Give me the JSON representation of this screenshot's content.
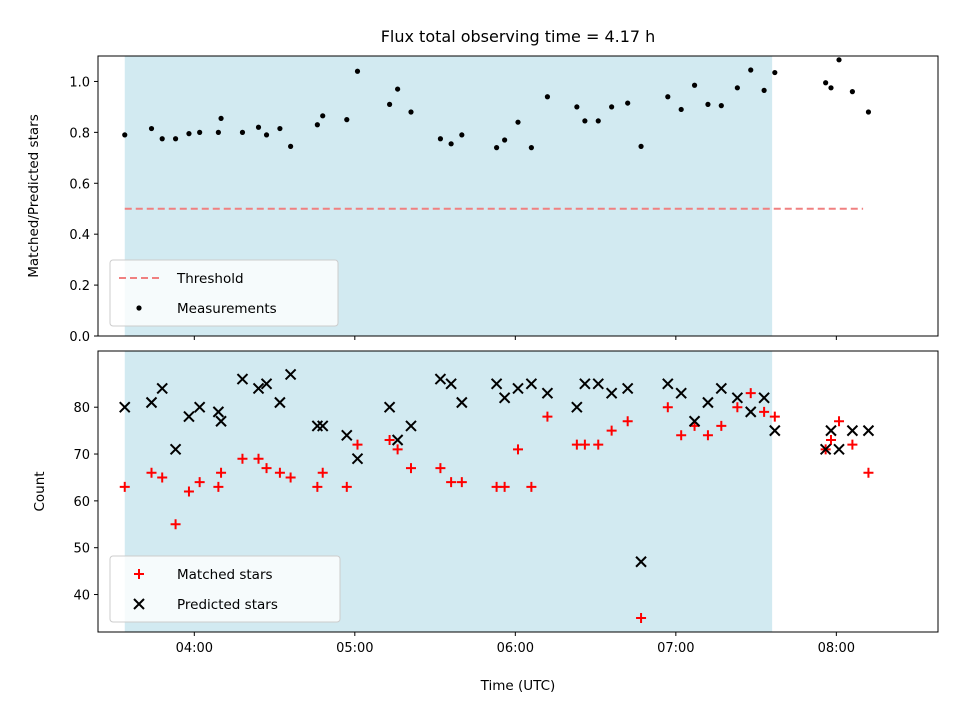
{
  "title": "Flux total observing time = 4.17 h",
  "xlabel": "Time (UTC)",
  "x_ticks": [
    "04:00",
    "05:00",
    "06:00",
    "07:00",
    "08:00"
  ],
  "colors": {
    "threshold": "#f08080",
    "span": "#add8e6",
    "measurements": "#000000",
    "matched": "#ff0000",
    "predicted": "#000000"
  },
  "chart_data": [
    {
      "type": "scatter",
      "ylabel": "Matched/Predicted stars",
      "xlim": [
        "03:24",
        "08:38"
      ],
      "ylim": [
        0,
        1.1
      ],
      "y_ticks": [
        "0.0",
        "0.2",
        "0.4",
        "0.6",
        "0.8",
        "1.0"
      ],
      "shaded_span": [
        "03:34",
        "07:36"
      ],
      "threshold": {
        "name": "Threshold",
        "y": 0.5,
        "x": [
          "03:34",
          "08:10"
        ]
      },
      "series": [
        {
          "name": "Measurements",
          "x": [
            "03:34",
            "03:44",
            "03:48",
            "03:53",
            "03:58",
            "04:02",
            "04:09",
            "04:10",
            "04:18",
            "04:24",
            "04:27",
            "04:32",
            "04:36",
            "04:46",
            "04:48",
            "04:57",
            "05:01",
            "05:13",
            "05:16",
            "05:21",
            "05:32",
            "05:36",
            "05:40",
            "05:53",
            "05:56",
            "06:01",
            "06:06",
            "06:12",
            "06:23",
            "06:26",
            "06:31",
            "06:36",
            "06:42",
            "06:47",
            "06:57",
            "07:02",
            "07:07",
            "07:12",
            "07:17",
            "07:23",
            "07:28",
            "07:33",
            "07:37",
            "07:56",
            "07:58",
            "08:01",
            "08:06",
            "08:12"
          ],
          "y": [
            0.79,
            0.815,
            0.775,
            0.775,
            0.795,
            0.8,
            0.8,
            0.855,
            0.8,
            0.82,
            0.79,
            0.815,
            0.745,
            0.83,
            0.865,
            0.85,
            1.04,
            0.91,
            0.97,
            0.88,
            0.775,
            0.755,
            0.79,
            0.74,
            0.77,
            0.84,
            0.74,
            0.94,
            0.9,
            0.845,
            0.845,
            0.9,
            0.915,
            0.745,
            0.94,
            0.89,
            0.985,
            0.91,
            0.905,
            0.975,
            1.045,
            0.965,
            1.035,
            0.995,
            0.975,
            1.085,
            0.96,
            0.88
          ]
        }
      ],
      "legend": {
        "position": "lower left",
        "entries": [
          "Threshold",
          "Measurements"
        ]
      }
    },
    {
      "type": "scatter",
      "ylabel": "Count",
      "xlim": [
        "03:24",
        "08:38"
      ],
      "ylim": [
        32,
        92
      ],
      "y_ticks": [
        "40",
        "50",
        "60",
        "70",
        "80"
      ],
      "shaded_span": [
        "03:34",
        "07:36"
      ],
      "series": [
        {
          "name": "Matched stars",
          "x": [
            "03:34",
            "03:44",
            "03:48",
            "03:53",
            "03:58",
            "04:02",
            "04:09",
            "04:10",
            "04:18",
            "04:24",
            "04:27",
            "04:32",
            "04:36",
            "04:46",
            "04:48",
            "04:57",
            "05:01",
            "05:13",
            "05:16",
            "05:21",
            "05:32",
            "05:36",
            "05:40",
            "05:53",
            "05:56",
            "06:01",
            "06:06",
            "06:12",
            "06:23",
            "06:26",
            "06:31",
            "06:36",
            "06:42",
            "06:47",
            "06:57",
            "07:02",
            "07:07",
            "07:12",
            "07:17",
            "07:23",
            "07:28",
            "07:33",
            "07:37",
            "07:56",
            "07:58",
            "08:01",
            "08:06",
            "08:12"
          ],
          "y": [
            63,
            66,
            65,
            55,
            62,
            64,
            63,
            66,
            69,
            69,
            67,
            66,
            65,
            63,
            66,
            63,
            72,
            73,
            71,
            67,
            67,
            64,
            64,
            63,
            63,
            71,
            63,
            78,
            72,
            72,
            72,
            75,
            77,
            35,
            80,
            74,
            76,
            74,
            76,
            80,
            83,
            79,
            78,
            71,
            73,
            77,
            72,
            66
          ]
        },
        {
          "name": "Predicted stars",
          "x": [
            "03:34",
            "03:44",
            "03:48",
            "03:53",
            "03:58",
            "04:02",
            "04:09",
            "04:10",
            "04:18",
            "04:24",
            "04:27",
            "04:32",
            "04:36",
            "04:46",
            "04:48",
            "04:57",
            "05:01",
            "05:13",
            "05:16",
            "05:21",
            "05:32",
            "05:36",
            "05:40",
            "05:53",
            "05:56",
            "06:01",
            "06:06",
            "06:12",
            "06:23",
            "06:26",
            "06:31",
            "06:36",
            "06:42",
            "06:47",
            "06:57",
            "07:02",
            "07:07",
            "07:12",
            "07:17",
            "07:23",
            "07:28",
            "07:33",
            "07:37",
            "07:56",
            "07:58",
            "08:01",
            "08:06",
            "08:12"
          ],
          "y": [
            80,
            81,
            84,
            71,
            78,
            80,
            79,
            77,
            86,
            84,
            85,
            81,
            87,
            76,
            76,
            74,
            69,
            80,
            73,
            76,
            86,
            85,
            81,
            85,
            82,
            84,
            85,
            83,
            80,
            85,
            85,
            83,
            84,
            47,
            85,
            83,
            77,
            81,
            84,
            82,
            79,
            82,
            75,
            71,
            75,
            71,
            75,
            75
          ]
        }
      ],
      "legend": {
        "position": "lower left",
        "entries": [
          "Matched stars",
          "Predicted stars"
        ]
      }
    }
  ]
}
